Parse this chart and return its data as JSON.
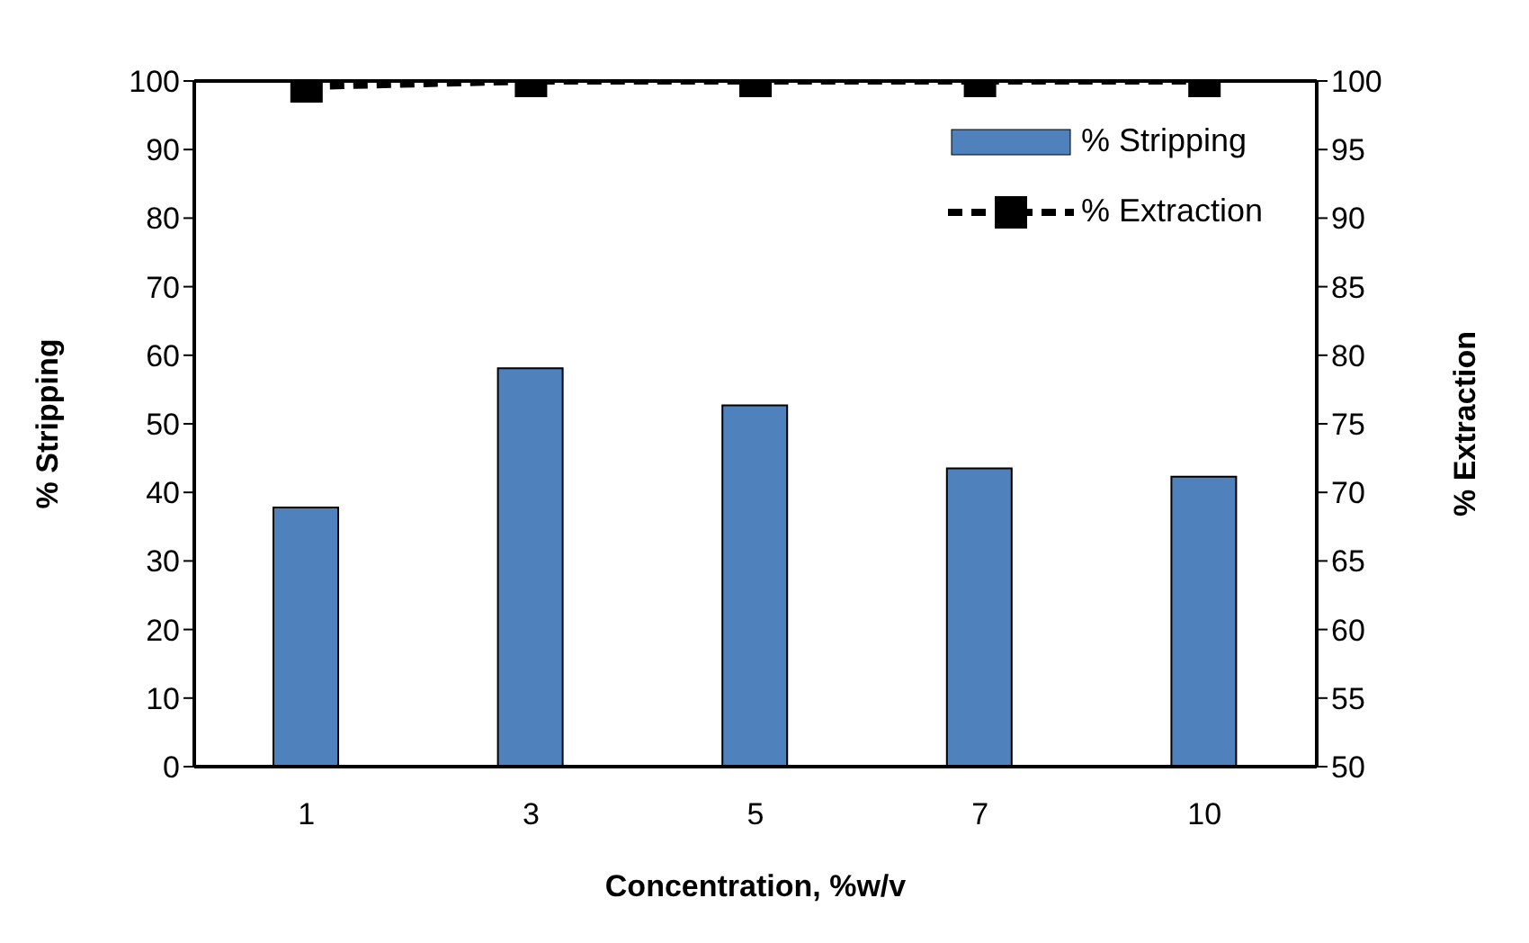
{
  "chart_data": {
    "type": "bar",
    "xlabel": "Concentration, %w/v",
    "ylabel": "% Stripping",
    "y2label": "% Extraction",
    "categories": [
      "1",
      "3",
      "5",
      "7",
      "10"
    ],
    "series": [
      {
        "name": "% Stripping",
        "color": "#4f81bd",
        "values": [
          37.8,
          58.1,
          52.7,
          43.5,
          42.3
        ]
      },
      {
        "name": "% Extraction",
        "type": "line",
        "axis": "y2",
        "color": "#000000",
        "marker": "square",
        "line_style": "dashed",
        "values": [
          99.6,
          100,
          100,
          100,
          100
        ]
      }
    ],
    "ylim": [
      0,
      100
    ],
    "yticks": [
      0,
      10,
      20,
      30,
      40,
      50,
      60,
      70,
      80,
      90,
      100
    ],
    "y2lim": [
      50,
      100
    ],
    "y2ticks": [
      50,
      55,
      60,
      65,
      70,
      75,
      80,
      85,
      90,
      95,
      100
    ],
    "grid": false,
    "legend": "top right"
  }
}
